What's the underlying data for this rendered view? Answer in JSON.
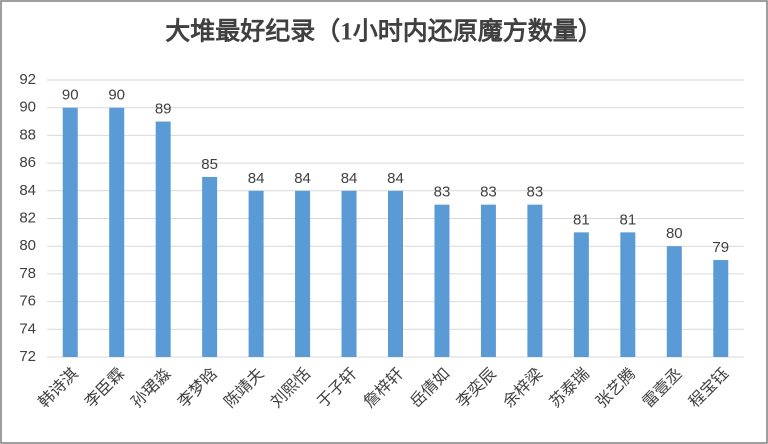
{
  "chart_data": {
    "type": "bar",
    "title": "大堆最好纪录（1小时内还原魔方数量）",
    "categories": [
      "韩诗淇",
      "李臣霖",
      "孙珺淼",
      "李梦晗",
      "陈靖夫",
      "刘熙恬",
      "于子轩",
      "詹梓轩",
      "岳倩如",
      "李奕辰",
      "余梓梁",
      "苏泰瑞",
      "张艺腾",
      "雷壹丞",
      "程宝钰"
    ],
    "values": [
      90,
      90,
      89,
      85,
      84,
      84,
      84,
      84,
      83,
      83,
      83,
      81,
      81,
      80,
      79
    ],
    "color": "#5b9bd5",
    "ylim": [
      72,
      92
    ],
    "yticks": [
      72,
      74,
      76,
      78,
      80,
      82,
      84,
      86,
      88,
      90,
      92
    ],
    "grid": true
  }
}
